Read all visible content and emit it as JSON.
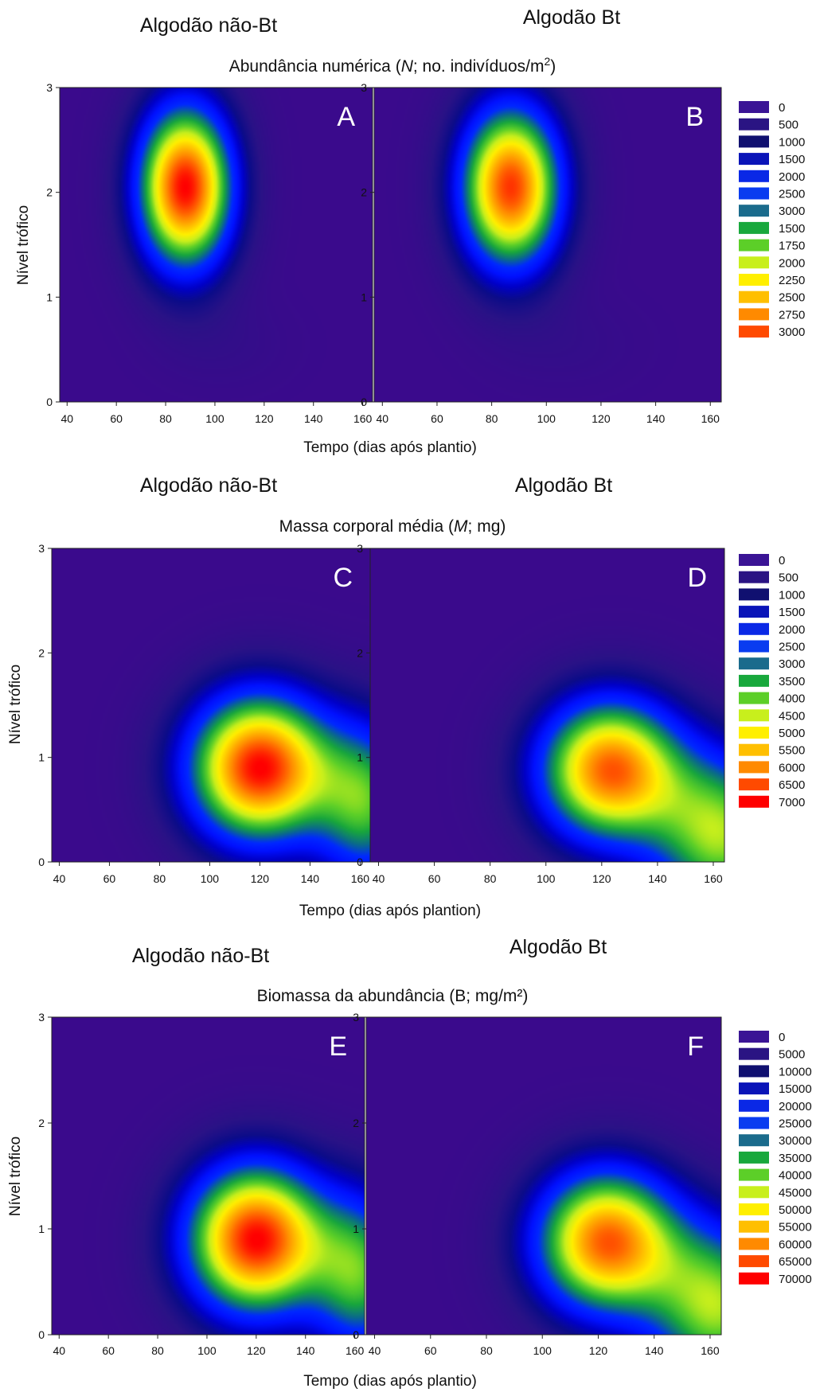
{
  "colors": {
    "ramp": [
      "#3a0a8c",
      "#2a1286",
      "#0c0c88",
      "#0000c8",
      "#0010ff",
      "#0028ff",
      "#0a6a8a",
      "#18a63c",
      "#5ccf28",
      "#c8ef1c",
      "#ffef00",
      "#ffbf00",
      "#ff8a00",
      "#ff4a00",
      "#ff0000"
    ],
    "legend_swatches": [
      "#3a1495",
      "#2a1483",
      "#101070",
      "#0a14b8",
      "#0a28e6",
      "#0a3cf0",
      "#1a6b8c",
      "#18a83c",
      "#5ccf28",
      "#c8ef1c",
      "#ffef00",
      "#ffbf00",
      "#ff8a00",
      "#ff4a00",
      "#ff0000"
    ]
  },
  "chart_data": [
    {
      "row": 1,
      "type": "heatmap",
      "title": "Abundância numérica (N;  no. indivíduos/m2)",
      "title_parts": [
        "Abundância numérica (",
        "N",
        ";  no. indivíduos/m",
        "2",
        ")"
      ],
      "panel_titles": [
        "Algodão não-Bt",
        "Algodão Bt"
      ],
      "panel_letters": [
        "A",
        "B"
      ],
      "xlabel": "Tempo (dias após plantio)",
      "ylabel": "Nível trófico",
      "xlim": [
        37,
        164
      ],
      "ylim": [
        0,
        3
      ],
      "x_ticks": [
        40,
        60,
        80,
        100,
        120,
        140,
        160
      ],
      "y_ticks": [
        0,
        1,
        2,
        3
      ],
      "legend": [
        "0",
        "500",
        "1000",
        "1500",
        "2000",
        "2500",
        "3000",
        "1500",
        "1750",
        "2000",
        "2250",
        "2500",
        "2750",
        "3000"
      ],
      "legend_max": 3000,
      "panels": [
        {
          "letter": "A",
          "peaks": [
            {
              "x": 88,
              "y": 2.05,
              "value": 3000,
              "sx": 13.5,
              "sy": 0.55
            },
            {
              "x": 105,
              "y": 0.55,
              "value": 80,
              "sx": 18,
              "sy": 0.3
            }
          ]
        },
        {
          "letter": "B",
          "peaks": [
            {
              "x": 87,
              "y": 2.05,
              "value": 2850,
              "sx": 13,
              "sy": 0.55
            },
            {
              "x": 108,
              "y": 0.55,
              "value": 80,
              "sx": 18,
              "sy": 0.3
            }
          ]
        }
      ]
    },
    {
      "row": 2,
      "type": "heatmap",
      "title": "Massa corporal média (M; mg)",
      "title_parts": [
        "Massa corporal média (",
        "M",
        "; mg)",
        "",
        ""
      ],
      "panel_titles": [
        "Algodão não-Bt",
        "Algodão Bt"
      ],
      "panel_letters": [
        "C",
        "D"
      ],
      "xlabel": "Tempo (dias após plantion)",
      "ylabel": "Nível trófico",
      "xlim": [
        37,
        164
      ],
      "ylim": [
        0,
        3
      ],
      "x_ticks": [
        40,
        60,
        80,
        100,
        120,
        140,
        160
      ],
      "y_ticks": [
        0,
        1,
        2,
        3
      ],
      "legend": [
        "0",
        "500",
        "1000",
        "1500",
        "2000",
        "2500",
        "3000",
        "3500",
        "4000",
        "4500",
        "5000",
        "5500",
        "6000",
        "6500",
        "7000"
      ],
      "legend_max": 7000,
      "panels": [
        {
          "letter": "C",
          "peaks": [
            {
              "x": 120,
              "y": 0.9,
              "value": 7000,
              "sx": 20,
              "sy": 0.5
            },
            {
              "x": 163,
              "y": 0.55,
              "value": 3500,
              "sx": 14,
              "sy": 0.55
            }
          ]
        },
        {
          "letter": "D",
          "peaks": [
            {
              "x": 123,
              "y": 0.88,
              "value": 6300,
              "sx": 18,
              "sy": 0.48
            },
            {
              "x": 163,
              "y": 0.25,
              "value": 4200,
              "sx": 17,
              "sy": 0.55
            }
          ]
        }
      ]
    },
    {
      "row": 3,
      "type": "heatmap",
      "title": "Biomassa da abundância (B; mg/m²)",
      "title_parts": [
        "Biomassa da abundância (B; mg/m²)",
        "",
        "",
        "",
        ""
      ],
      "panel_titles": [
        "Algodão não-Bt",
        "Algodão Bt"
      ],
      "panel_letters": [
        "E",
        "F"
      ],
      "xlabel": "Tempo (dias após plantio)",
      "ylabel": "Nível trófico",
      "xlim": [
        37,
        164
      ],
      "ylim": [
        0,
        3
      ],
      "x_ticks": [
        40,
        60,
        80,
        100,
        120,
        140,
        160
      ],
      "y_ticks": [
        0,
        1,
        2,
        3
      ],
      "legend": [
        "0",
        "5000",
        "10000",
        "15000",
        "20000",
        "25000",
        "30000",
        "35000",
        "40000",
        "45000",
        "50000",
        "55000",
        "60000",
        "65000",
        "70000"
      ],
      "legend_max": 70000,
      "panels": [
        {
          "letter": "E",
          "peaks": [
            {
              "x": 120,
              "y": 0.9,
              "value": 70000,
              "sx": 20,
              "sy": 0.5
            },
            {
              "x": 163,
              "y": 0.55,
              "value": 35000,
              "sx": 14,
              "sy": 0.55
            }
          ]
        },
        {
          "letter": "F",
          "peaks": [
            {
              "x": 123,
              "y": 0.88,
              "value": 63000,
              "sx": 18,
              "sy": 0.48
            },
            {
              "x": 163,
              "y": 0.25,
              "value": 42000,
              "sx": 17,
              "sy": 0.55
            }
          ]
        }
      ]
    }
  ]
}
